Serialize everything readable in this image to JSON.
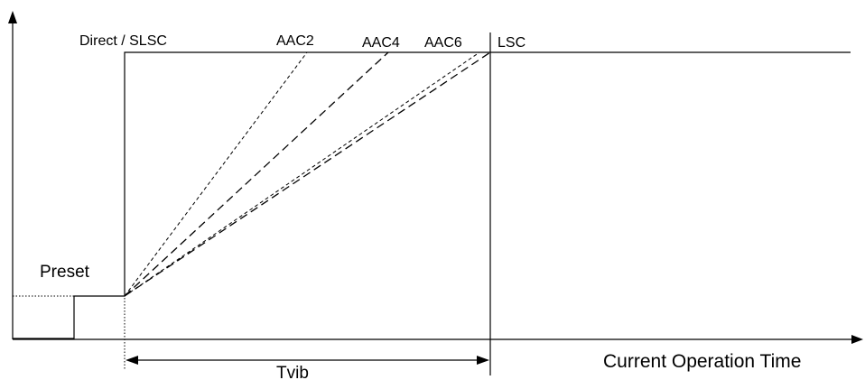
{
  "labels": {
    "direct_slsc": "Direct / SLSC",
    "aac2": "AAC2",
    "aac4": "AAC4",
    "aac6": "AAC6",
    "lsc": "LSC",
    "preset": "Preset",
    "tvib": "Tvib",
    "x_axis": "Current Operation Time"
  },
  "colors": {
    "line": "#000000",
    "background": "#ffffff"
  }
}
